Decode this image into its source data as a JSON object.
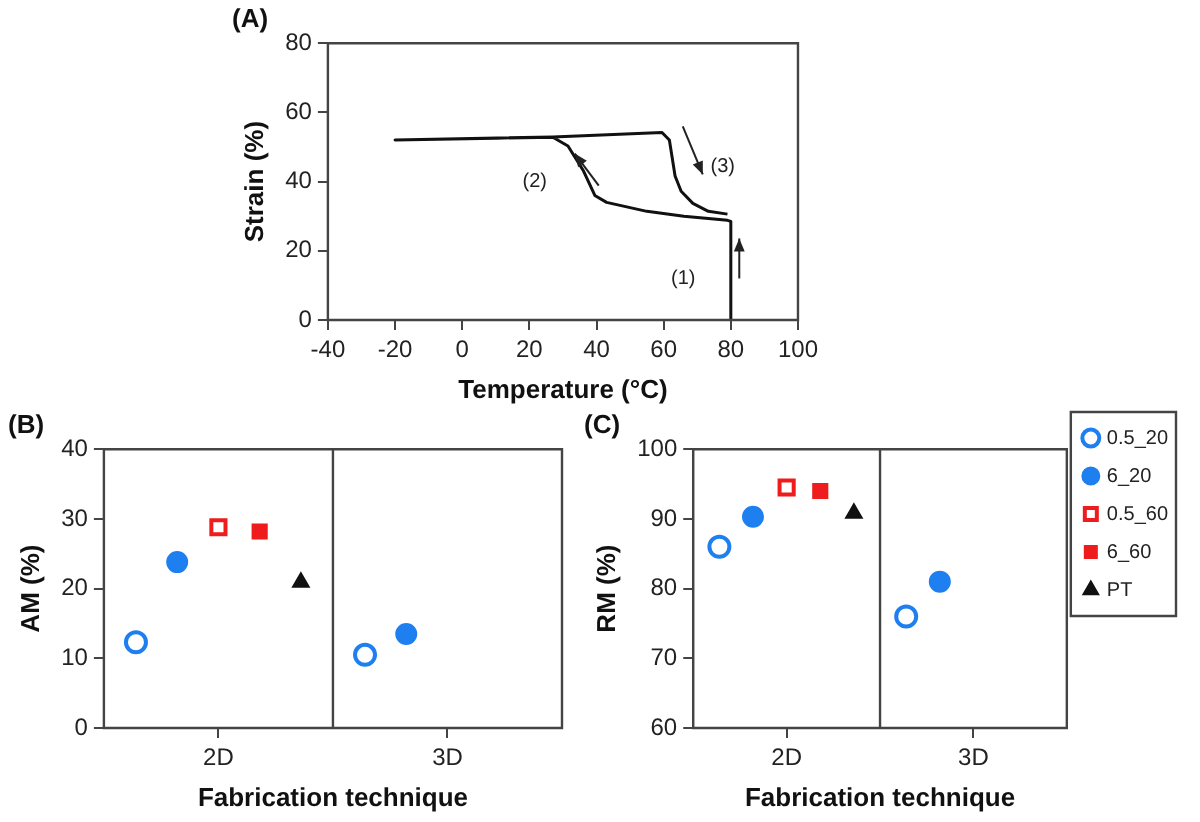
{
  "chart_data": [
    {
      "type": "line",
      "title": "(A)",
      "xlabel": "Temperature (°C)",
      "ylabel": "Strain (%)",
      "xlim": [
        -40,
        100
      ],
      "xticks": [
        -40,
        -20,
        0,
        20,
        40,
        60,
        80,
        100
      ],
      "ylim": [
        0,
        80
      ],
      "yticks": [
        0,
        20,
        40,
        60,
        80
      ],
      "grid": false,
      "legend": false,
      "marker": "none",
      "line_style": "solid",
      "series": [
        {
          "color": "#111111",
          "x": [
            80,
            80,
            79,
            66,
            55,
            43,
            39.5,
            36,
            31.5,
            27,
            -20,
            27,
            59.5,
            61.7,
            63.4,
            65.2,
            68.7,
            73.3,
            79
          ],
          "values": [
            0,
            28.5,
            28.8,
            30,
            31.4,
            34,
            36,
            43.3,
            50.3,
            52.8,
            52,
            52.9,
            54.2,
            52,
            41.6,
            37.2,
            33.7,
            31.4,
            30.6
          ]
        }
      ],
      "annotations": [
        "(1)",
        "(2)",
        "(3)"
      ]
    },
    {
      "type": "scatter",
      "title": "(B)",
      "xlabel": "Fabrication technique",
      "ylabel": "AM (%)",
      "categories": [
        "2D",
        "3D"
      ],
      "ylim": [
        0,
        40
      ],
      "yticks": [
        0,
        10,
        20,
        30,
        40
      ],
      "grid": "x",
      "legend": false,
      "series": [
        {
          "color": "#1e7ff0",
          "marker": "circle",
          "values": [
            12.3,
            10.5
          ]
        },
        {
          "color": "#1e7ff0",
          "marker": "circle",
          "values": [
            23.8,
            13.5
          ]
        },
        {
          "color": "#ee1c1c",
          "marker": "square",
          "values": [
            28.8,
            null
          ]
        },
        {
          "color": "#ee1c1c",
          "marker": "square",
          "values": [
            28.2,
            null
          ]
        },
        {
          "color": "#111111",
          "marker": "triangle",
          "values": [
            20.9,
            null
          ]
        }
      ]
    },
    {
      "type": "scatter",
      "title": "(C)",
      "xlabel": "Fabrication technique",
      "ylabel": "RM (%)",
      "categories": [
        "2D",
        "3D"
      ],
      "ylim": [
        60,
        100
      ],
      "yticks": [
        60,
        70,
        80,
        90,
        100
      ],
      "grid": "x",
      "legend": "right",
      "series": [
        {
          "name": "0.5_20",
          "color": "#1e7ff0",
          "marker": "circle",
          "values": [
            86,
            76
          ]
        },
        {
          "name": "6_20",
          "color": "#1e7ff0",
          "marker": "circle",
          "values": [
            90.3,
            81
          ]
        },
        {
          "name": "0.5_60",
          "color": "#ee1c1c",
          "marker": "square",
          "values": [
            94.5,
            null
          ]
        },
        {
          "name": "6_60",
          "color": "#ee1c1c",
          "marker": "square",
          "values": [
            94,
            null
          ]
        },
        {
          "name": "PT",
          "color": "#111111",
          "marker": "triangle",
          "values": [
            90.8,
            null
          ]
        }
      ]
    }
  ]
}
